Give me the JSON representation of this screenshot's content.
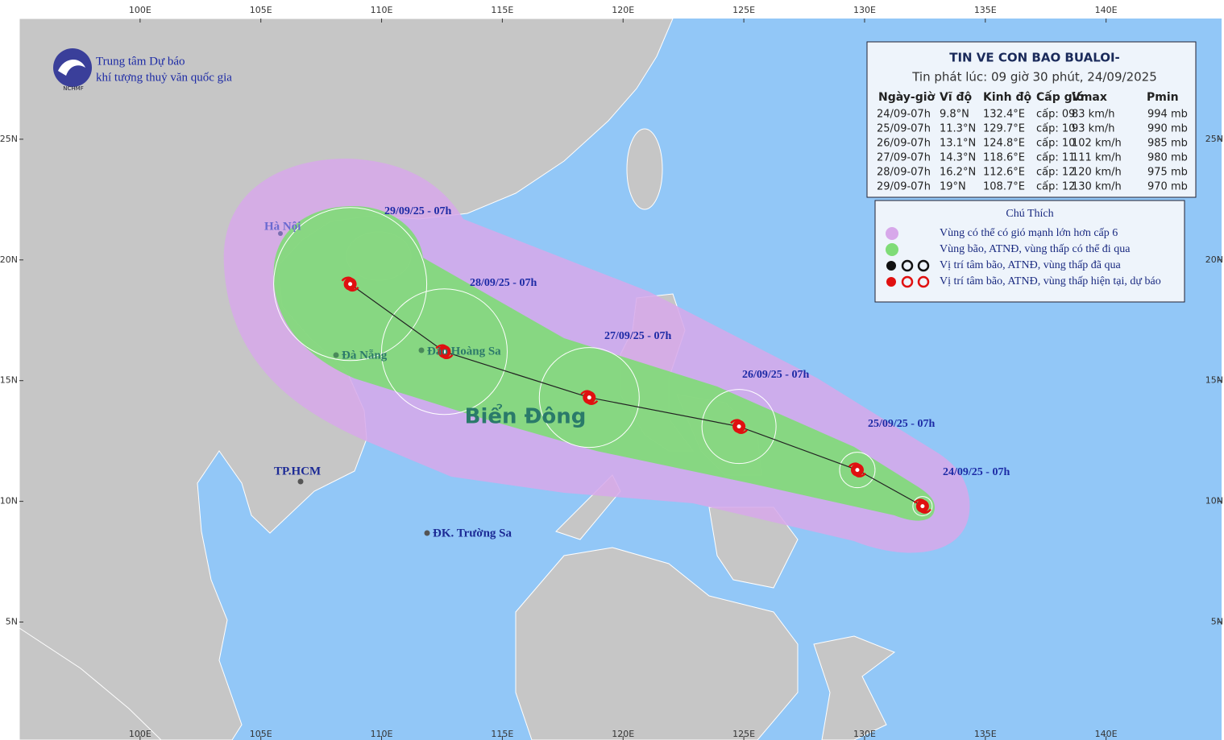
{
  "header": {
    "title": "TIN VE CON BAO BUALOI-",
    "issued": "Tin phát lúc: 09 giờ 30 phút, 24/09/2025"
  },
  "table": {
    "columns": [
      "Ngày-giờ",
      "Vĩ độ",
      "Kinh độ",
      "Cấp gió",
      "Vmax",
      "Pmin"
    ],
    "rows": [
      [
        "24/09-07h",
        "9.8°N",
        "132.4°E",
        "cấp: 09",
        "83 km/h",
        "994 mb"
      ],
      [
        "25/09-07h",
        "11.3°N",
        "129.7°E",
        "cấp: 10",
        "93 km/h",
        "990 mb"
      ],
      [
        "26/09-07h",
        "13.1°N",
        "124.8°E",
        "cấp: 10",
        "102 km/h",
        "985 mb"
      ],
      [
        "27/09-07h",
        "14.3°N",
        "118.6°E",
        "cấp: 11",
        "111 km/h",
        "980 mb"
      ],
      [
        "28/09-07h",
        "16.2°N",
        "112.6°E",
        "cấp: 12",
        "120 km/h",
        "975 mb"
      ],
      [
        "29/09-07h",
        "19°N",
        "108.7°E",
        "cấp: 12",
        "130 km/h",
        "970 mb"
      ]
    ]
  },
  "legend": {
    "title": "Chú Thích",
    "items": [
      "Vùng có thể có gió mạnh lớn hơn cấp 6",
      "Vùng bão, ATNĐ, vùng thấp có thể đi qua",
      "Vị trí tâm bão, ATNĐ, vùng thấp đã qua",
      "Vị trí tâm bão, ATNĐ, vùng thấp hiện tại, dự báo"
    ]
  },
  "agency": {
    "line1": "Trung tâm Dự báo",
    "line2": "khí tượng thuỷ văn quốc gia",
    "abbr": "NCHMF"
  },
  "track_labels": [
    "24/09/25 - 07h",
    "25/09/25 - 07h",
    "26/09/25 - 07h",
    "27/09/25 - 07h",
    "28/09/25 - 07h",
    "29/09/25 - 07h"
  ],
  "places": {
    "hanoi": "Hà Nội",
    "danang": "Đà Nẵng",
    "hoangsa": "Đảo Hoàng Sa",
    "hcm": "TP.HCM",
    "truongsa": "ĐK. Trường Sa",
    "sea": "Biển Đông"
  },
  "grid": {
    "lon_ticks": [
      {
        "value": 100,
        "label": "100E"
      },
      {
        "value": 105,
        "label": "105E"
      },
      {
        "value": 110,
        "label": "110E"
      },
      {
        "value": 115,
        "label": "115E"
      },
      {
        "value": 120,
        "label": "120E"
      },
      {
        "value": 125,
        "label": "125E"
      },
      {
        "value": 130,
        "label": "130E"
      },
      {
        "value": 135,
        "label": "135E"
      },
      {
        "value": 140,
        "label": "140E"
      }
    ],
    "lat_ticks": [
      {
        "value": 25,
        "label": "25N"
      },
      {
        "value": 20,
        "label": "20N"
      },
      {
        "value": 15,
        "label": "15N"
      },
      {
        "value": 10,
        "label": "10N"
      },
      {
        "value": 5,
        "label": "5N"
      }
    ]
  }
}
